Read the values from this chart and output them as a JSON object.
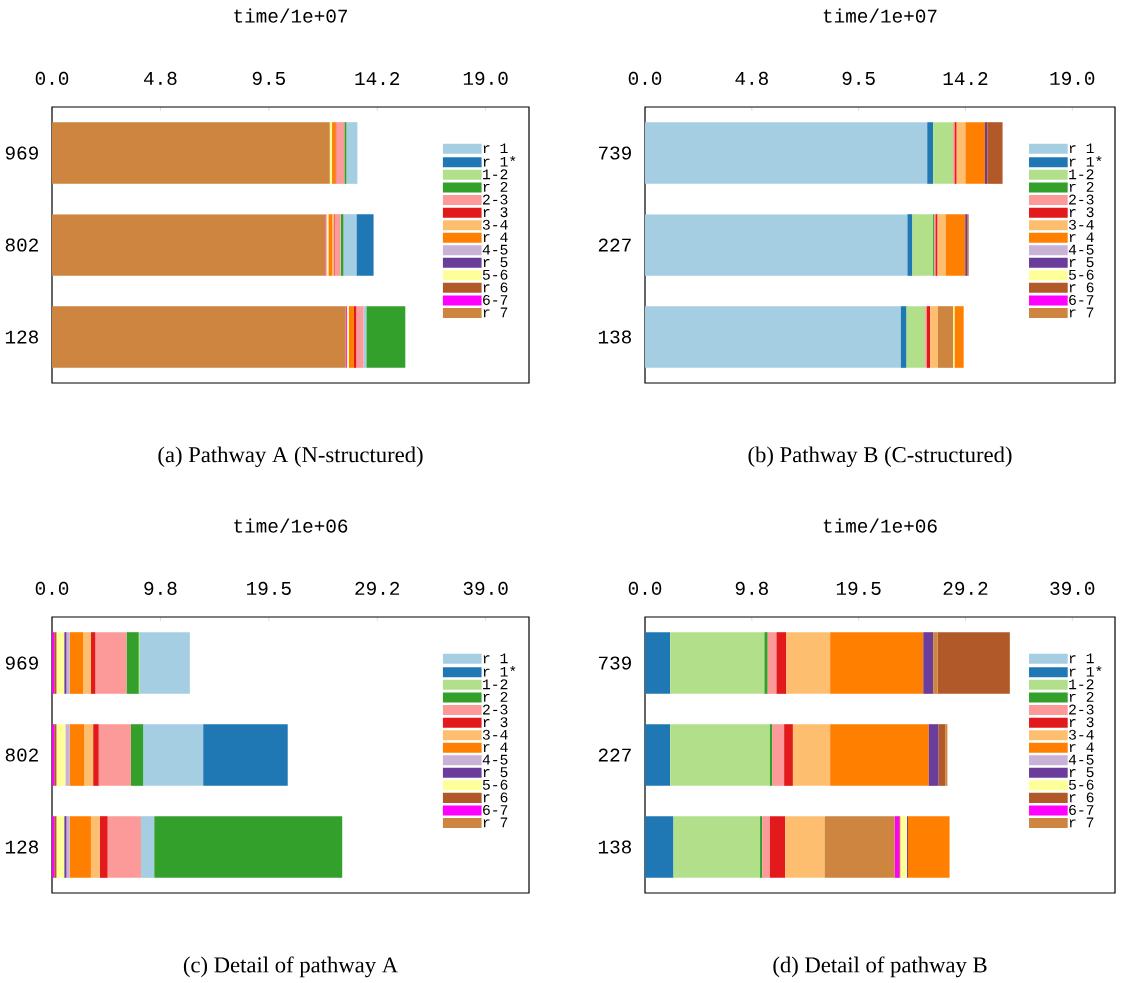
{
  "chart_data": [
    {
      "type": "bar",
      "orientation": "horizontal",
      "title": "(a) Pathway A (N-structured)",
      "xlabel": "time/1e+07",
      "categories": [
        "969",
        "802",
        "128"
      ],
      "xlim": [
        0,
        20.9
      ],
      "xticks": [
        {
          "value": 0,
          "label": "0.0"
        },
        {
          "value": 4.75,
          "label": "4.8"
        },
        {
          "value": 9.5,
          "label": "9.5"
        },
        {
          "value": 14.25,
          "label": "14.2"
        },
        {
          "value": 19,
          "label": "19.0"
        }
      ],
      "legend": "top right",
      "series": [
        {
          "name": "r 1",
          "color": "#a6cee3",
          "values": [
            0.48,
            0.58,
            0.13
          ],
          "base": [
            12.9,
            12.77,
            13.65
          ]
        },
        {
          "name": "r 1*",
          "color": "#1f78b4",
          "values": [
            null,
            0.74,
            null
          ],
          "base": [
            null,
            13.35,
            null
          ]
        },
        {
          "name": "1-2",
          "color": "#b2df8a",
          "values": [
            null,
            null,
            null
          ],
          "base": [
            null,
            null,
            null
          ]
        },
        {
          "name": "r 2",
          "color": "#33a02c",
          "values": [
            0.09,
            0.12,
            1.7
          ],
          "base": [
            12.81,
            12.65,
            13.78
          ]
        },
        {
          "name": "2-3",
          "color": "#fb9a99",
          "values": [
            0.34,
            0.26,
            0.32
          ],
          "base": [
            12.47,
            12.38,
            13.33
          ]
        },
        {
          "name": "r 3",
          "color": "#e31a1c",
          "values": [
            0.04,
            0.04,
            0.1
          ],
          "base": [
            12.42,
            12.34,
            13.23
          ]
        },
        {
          "name": "3-4",
          "color": "#fdbf6f",
          "values": [
            null,
            0.07,
            null
          ],
          "base": [
            null,
            12.27,
            null
          ]
        },
        {
          "name": "r 4",
          "color": "#ff7f00",
          "values": [
            0.15,
            0.16,
            0.22
          ],
          "base": [
            12.27,
            12.11,
            13.01
          ]
        },
        {
          "name": "4-5",
          "color": "#cab2d6",
          "values": [
            null,
            null,
            null
          ],
          "base": [
            null,
            null,
            null
          ]
        },
        {
          "name": "r 5",
          "color": "#6a3d9a",
          "values": [
            null,
            null,
            null
          ],
          "base": [
            null,
            null,
            null
          ]
        },
        {
          "name": "5-6",
          "color": "#ffff99",
          "values": [
            0.1,
            0.09,
            0.09
          ],
          "base": [
            12.17,
            12.02,
            12.92
          ]
        },
        {
          "name": "r 6",
          "color": "#b15928",
          "values": [
            null,
            null,
            null
          ],
          "base": [
            null,
            null,
            null
          ]
        },
        {
          "name": "6-7",
          "color": "#ff00ff",
          "values": [
            null,
            0.04,
            0.05
          ],
          "base": [
            null,
            11.98,
            12.87
          ]
        },
        {
          "name": "r 7",
          "color": "#cd853f",
          "values": [
            12.17,
            11.98,
            12.87
          ],
          "base": [
            0,
            0,
            0
          ]
        }
      ]
    },
    {
      "type": "bar",
      "orientation": "horizontal",
      "title": "(b) Pathway B (C-structured)",
      "xlabel": "time/1e+07",
      "categories": [
        "739",
        "227",
        "138"
      ],
      "xlim": [
        0,
        20.9
      ],
      "xticks": [
        {
          "value": 0,
          "label": "0.0"
        },
        {
          "value": 4.75,
          "label": "4.8"
        },
        {
          "value": 9.5,
          "label": "9.5"
        },
        {
          "value": 14.25,
          "label": "14.2"
        },
        {
          "value": 19,
          "label": "19.0"
        }
      ],
      "legend": "top right",
      "series": [
        {
          "name": "r 1",
          "color": "#a6cee3",
          "values": [
            12.55,
            11.67,
            11.37
          ],
          "base": [
            0,
            0,
            0
          ]
        },
        {
          "name": "r 1*",
          "color": "#1f78b4",
          "values": [
            0.26,
            0.22,
            0.26
          ],
          "base": [
            12.55,
            11.67,
            11.37
          ]
        },
        {
          "name": "1-2",
          "color": "#b2df8a",
          "values": [
            0.89,
            0.92,
            0.83
          ],
          "base": [
            12.81,
            11.89,
            11.63
          ]
        },
        {
          "name": "r 2",
          "color": "#33a02c",
          "values": [
            null,
            0.04,
            null
          ],
          "base": [
            null,
            12.81,
            null
          ]
        },
        {
          "name": "2-3",
          "color": "#fb9a99",
          "values": [
            0.07,
            0.07,
            0.07
          ],
          "base": [
            13.7,
            12.85,
            12.46
          ]
        },
        {
          "name": "r 3",
          "color": "#e31a1c",
          "values": [
            0.09,
            0.09,
            0.15
          ],
          "base": [
            13.77,
            12.92,
            12.53
          ]
        },
        {
          "name": "3-4",
          "color": "#fdbf6f",
          "values": [
            0.39,
            0.36,
            0.35
          ],
          "base": [
            13.86,
            13.01,
            12.68
          ]
        },
        {
          "name": "r 4",
          "color": "#ff7f00",
          "values": [
            0.87,
            0.87,
            0.41
          ],
          "base": [
            14.25,
            13.37,
            13.76
          ]
        },
        {
          "name": "4-5",
          "color": "#cab2d6",
          "values": [
            null,
            null,
            null
          ],
          "base": [
            null,
            null,
            null
          ]
        },
        {
          "name": "r 5",
          "color": "#6a3d9a",
          "values": [
            0.1,
            0.09,
            null
          ],
          "base": [
            15.12,
            14.24,
            null
          ]
        },
        {
          "name": "5-6",
          "color": "#ffff99",
          "values": [
            null,
            null,
            0.06
          ],
          "base": [
            null,
            null,
            13.7
          ]
        },
        {
          "name": "r 6",
          "color": "#b15928",
          "values": [
            0.68,
            0.06,
            null
          ],
          "base": [
            15.22,
            14.33,
            null
          ]
        },
        {
          "name": "6-7",
          "color": "#ff00ff",
          "values": [
            null,
            null,
            null
          ],
          "base": [
            null,
            null,
            null
          ]
        },
        {
          "name": "r 7",
          "color": "#cd853f",
          "values": [
            null,
            null,
            0.67
          ],
          "base": [
            null,
            null,
            13.03
          ]
        }
      ]
    },
    {
      "type": "bar",
      "orientation": "horizontal",
      "title": "(c) Detail of pathway A",
      "xlabel": "time/1e+06",
      "categories": [
        "969",
        "802",
        "128"
      ],
      "xlim": [
        0,
        42.9
      ],
      "xticks": [
        {
          "value": 0,
          "label": "0.0"
        },
        {
          "value": 9.75,
          "label": "9.8"
        },
        {
          "value": 19.5,
          "label": "19.5"
        },
        {
          "value": 29.25,
          "label": "29.2"
        },
        {
          "value": 39,
          "label": "39.0"
        }
      ],
      "legend": "top right",
      "series": [
        {
          "name": "r 1",
          "color": "#a6cee3",
          "values": [
            4.5,
            5.4,
            1.2
          ],
          "base": [
            7.9,
            8.2,
            8.0
          ]
        },
        {
          "name": "r 1*",
          "color": "#1f78b4",
          "values": [
            null,
            7.6,
            null
          ],
          "base": [
            null,
            13.6,
            null
          ]
        },
        {
          "name": "1-2",
          "color": "#b2df8a",
          "values": [
            0.1,
            null,
            null
          ],
          "base": [
            7.8,
            null,
            null
          ]
        },
        {
          "name": "r 2",
          "color": "#33a02c",
          "values": [
            1.1,
            1.1,
            16.9
          ],
          "base": [
            6.7,
            7.1,
            9.2
          ]
        },
        {
          "name": "2-3",
          "color": "#fb9a99",
          "values": [
            2.8,
            2.9,
            3.0
          ],
          "base": [
            3.9,
            4.2,
            5.0
          ]
        },
        {
          "name": "r 3",
          "color": "#e31a1c",
          "values": [
            0.4,
            0.5,
            0.7
          ],
          "base": [
            3.5,
            3.7,
            4.3
          ]
        },
        {
          "name": "3-4",
          "color": "#fdbf6f",
          "values": [
            0.7,
            0.8,
            0.8
          ],
          "base": [
            2.8,
            2.9,
            3.5
          ]
        },
        {
          "name": "r 4",
          "color": "#ff7f00",
          "values": [
            1.2,
            1.3,
            1.9
          ],
          "base": [
            1.6,
            1.6,
            1.6
          ]
        },
        {
          "name": "4-5",
          "color": "#cab2d6",
          "values": [
            0.3,
            0.4,
            0.3
          ],
          "base": [
            1.3,
            1.2,
            1.3
          ]
        },
        {
          "name": "r 5",
          "color": "#6a3d9a",
          "values": [
            0.2,
            null,
            0.2
          ],
          "base": [
            1.1,
            null,
            1.1
          ]
        },
        {
          "name": "5-6",
          "color": "#ffff99",
          "values": [
            0.7,
            0.8,
            0.7
          ],
          "base": [
            0.4,
            0.4,
            0.4
          ]
        },
        {
          "name": "r 6",
          "color": "#b15928",
          "values": [
            0.2,
            0.2,
            0.2
          ],
          "base": [
            0.2,
            0.2,
            0.2
          ]
        },
        {
          "name": "6-7",
          "color": "#ff00ff",
          "values": [
            0.2,
            0.2,
            0.2
          ],
          "base": [
            0,
            0,
            0
          ]
        },
        {
          "name": "r 7",
          "color": "#cd853f",
          "values": [
            null,
            null,
            null
          ],
          "base": [
            null,
            null,
            null
          ]
        }
      ]
    },
    {
      "type": "bar",
      "orientation": "horizontal",
      "title": "(d) Detail of pathway B",
      "xlabel": "time/1e+06",
      "categories": [
        "739",
        "227",
        "138"
      ],
      "xlim": [
        0,
        42.9
      ],
      "xticks": [
        {
          "value": 0,
          "label": "0.0"
        },
        {
          "value": 9.75,
          "label": "9.8"
        },
        {
          "value": 19.5,
          "label": "19.5"
        },
        {
          "value": 29.25,
          "label": "29.2"
        },
        {
          "value": 39,
          "label": "39.0"
        }
      ],
      "legend": "top right",
      "series": [
        {
          "name": "r 1",
          "color": "#a6cee3",
          "values": [
            null,
            null,
            null
          ],
          "base": [
            null,
            null,
            null
          ]
        },
        {
          "name": "r 1*",
          "color": "#1f78b4",
          "values": [
            2.3,
            2.3,
            2.6
          ],
          "base": [
            0,
            0,
            0
          ]
        },
        {
          "name": "1-2",
          "color": "#b2df8a",
          "values": [
            8.6,
            9.1,
            7.9
          ],
          "base": [
            2.3,
            2.3,
            2.6
          ]
        },
        {
          "name": "r 2",
          "color": "#33a02c",
          "values": [
            0.3,
            0.2,
            0.2
          ],
          "base": [
            10.9,
            11.4,
            10.5
          ]
        },
        {
          "name": "2-3",
          "color": "#fb9a99",
          "values": [
            0.8,
            1.1,
            0.7
          ],
          "base": [
            11.2,
            11.6,
            10.7
          ]
        },
        {
          "name": "r 3",
          "color": "#e31a1c",
          "values": [
            0.9,
            0.8,
            1.4
          ],
          "base": [
            12.0,
            12.7,
            11.4
          ]
        },
        {
          "name": "3-4",
          "color": "#fdbf6f",
          "values": [
            4.0,
            3.4,
            3.6
          ],
          "base": [
            12.9,
            13.5,
            12.8
          ]
        },
        {
          "name": "r 4",
          "color": "#ff7f00",
          "values": [
            8.5,
            9.0,
            3.8
          ],
          "base": [
            16.9,
            16.9,
            24.0
          ]
        },
        {
          "name": "4-5",
          "color": "#cab2d6",
          "values": [
            null,
            null,
            null
          ],
          "base": [
            null,
            null,
            null
          ]
        },
        {
          "name": "r 5",
          "color": "#6a3d9a",
          "values": [
            0.9,
            0.9,
            0.1
          ],
          "base": [
            25.4,
            25.9,
            23.9
          ]
        },
        {
          "name": "5-6",
          "color": "#ffff99",
          "values": [
            null,
            null,
            0.6
          ],
          "base": [
            null,
            null,
            23.3
          ]
        },
        {
          "name": "r 6",
          "color": "#b15928",
          "values": [
            6.6,
            0.6,
            0.1
          ],
          "base": [
            26.7,
            26.8,
            23.2
          ]
        },
        {
          "name": "6-7",
          "color": "#ff00ff",
          "values": [
            null,
            null,
            0.4
          ],
          "base": [
            null,
            null,
            22.8
          ]
        },
        {
          "name": "r 7",
          "color": "#cd853f",
          "values": [
            0.4,
            0.2,
            6.4
          ],
          "base": [
            26.3,
            27.4,
            16.4
          ]
        }
      ]
    }
  ]
}
